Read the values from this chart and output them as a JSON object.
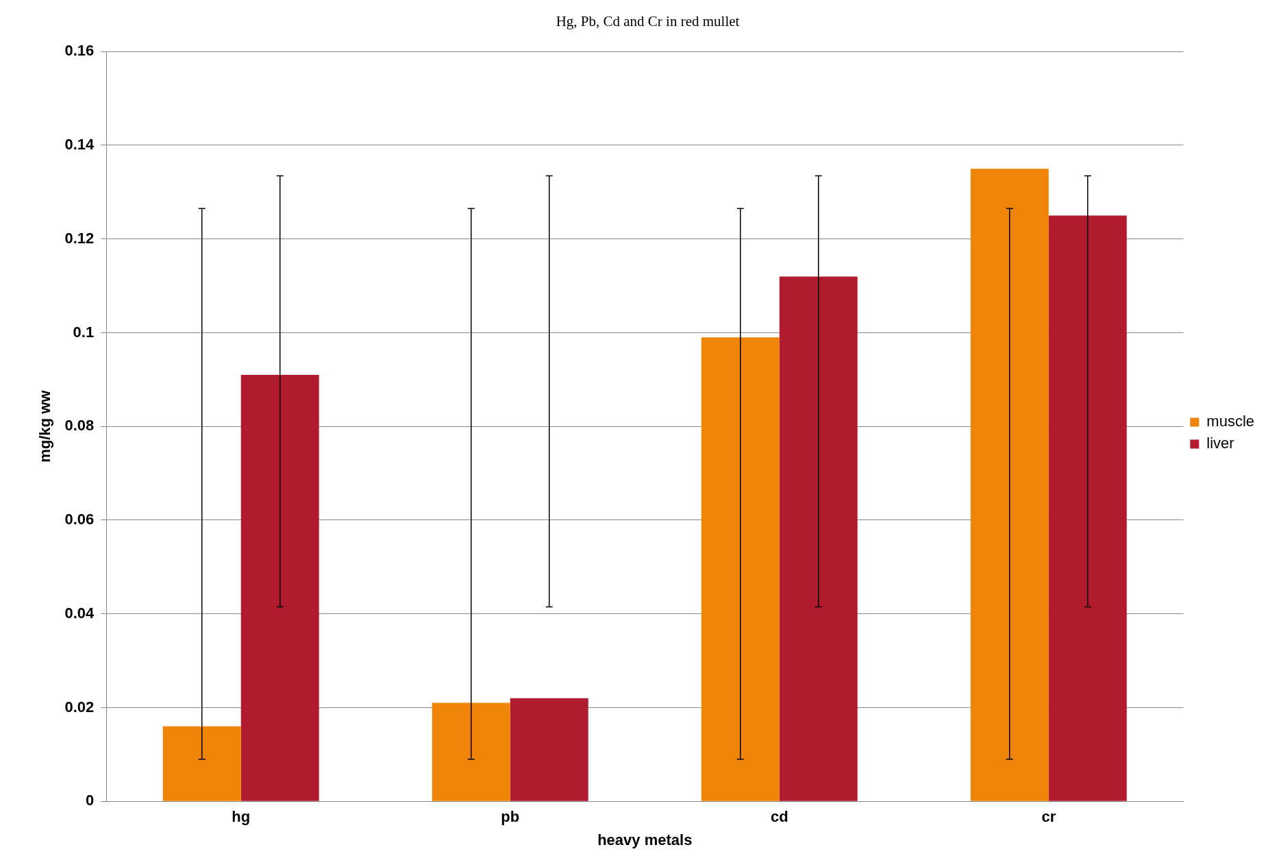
{
  "chart_data": {
    "type": "bar",
    "title": "Hg, Pb, Cd and Cr in red mullet",
    "xlabel": "heavy metals",
    "ylabel": "mg/kg ww",
    "categories": [
      "hg",
      "pb",
      "cd",
      "cr"
    ],
    "series": [
      {
        "name": "muscle",
        "color": "#f08408",
        "values": [
          0.016,
          0.021,
          0.099,
          0.135
        ],
        "errors": [
          [
            0.009,
            0.1265
          ],
          [
            0.009,
            0.1265
          ],
          [
            0.009,
            0.1265
          ],
          [
            0.009,
            0.1265
          ]
        ]
      },
      {
        "name": "liver",
        "color": "#b01c2e",
        "values": [
          0.091,
          0.022,
          0.112,
          0.125
        ],
        "errors": [
          [
            0.0415,
            0.1335
          ],
          [
            0.0415,
            0.1335
          ],
          [
            0.0415,
            0.1335
          ],
          [
            0.0415,
            0.1335
          ]
        ]
      }
    ],
    "ylim": [
      0,
      0.16
    ],
    "yticks": [
      0,
      0.02,
      0.04,
      0.06,
      0.08,
      0.1,
      0.12,
      0.14,
      0.16
    ],
    "grid": "y",
    "legend": "right"
  }
}
